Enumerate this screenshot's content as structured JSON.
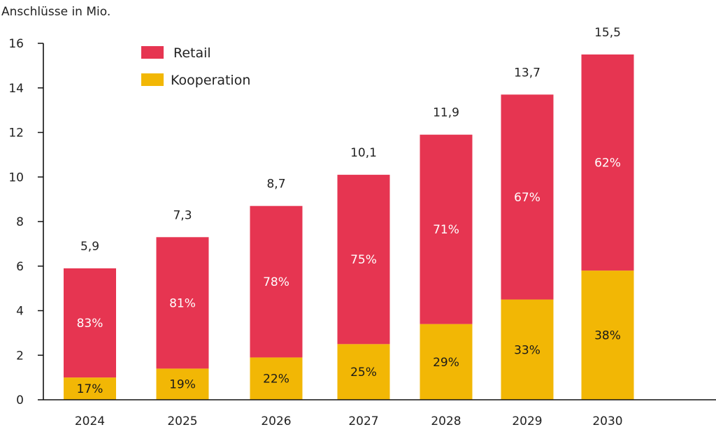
{
  "chart_data": {
    "type": "bar",
    "stacked": true,
    "ylabel": "Anschlüsse in Mio.",
    "xlabel": "",
    "ylim": [
      0,
      16
    ],
    "yticks": [
      0,
      2,
      4,
      6,
      8,
      10,
      12,
      14,
      16
    ],
    "categories": [
      "2024",
      "2025",
      "2026",
      "2027",
      "2028",
      "2029",
      "2030"
    ],
    "totals": [
      5.9,
      7.3,
      8.7,
      10.1,
      11.9,
      13.7,
      15.5
    ],
    "total_labels": [
      "5,9",
      "7,3",
      "8,7",
      "10,1",
      "11,9",
      "13,7",
      "15,5"
    ],
    "series": [
      {
        "name": "Kooperation",
        "color": "#f2b705",
        "values": [
          1.0,
          1.4,
          1.9,
          2.5,
          3.4,
          4.5,
          5.8
        ],
        "labels": [
          "17%",
          "19%",
          "22%",
          "25%",
          "29%",
          "33%",
          "38%"
        ]
      },
      {
        "name": "Retail",
        "color": "#e63551",
        "values": [
          4.9,
          5.9,
          6.8,
          7.6,
          8.5,
          9.2,
          9.7
        ],
        "labels": [
          "83%",
          "81%",
          "78%",
          "75%",
          "71%",
          "67%",
          "62%"
        ]
      }
    ],
    "legend": {
      "position": "top-left",
      "order": [
        "Retail",
        "Kooperation"
      ]
    },
    "grid": false
  }
}
